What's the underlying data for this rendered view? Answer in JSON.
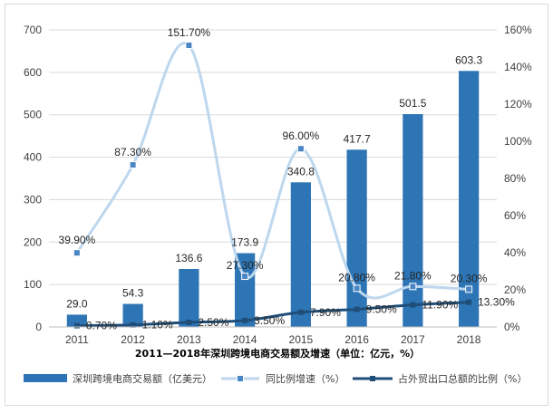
{
  "chart_data": {
    "type": "bar",
    "title": "2011—2018年深圳跨境电商交易额及增速（单位：亿元，%）",
    "categories": [
      "2011",
      "2012",
      "2013",
      "2014",
      "2015",
      "2016",
      "2017",
      "2018"
    ],
    "left_axis": {
      "min": 0,
      "max": 700,
      "ticks": [
        "0",
        "100",
        "200",
        "300",
        "400",
        "500",
        "600",
        "700"
      ]
    },
    "right_axis": {
      "min": 0,
      "max": 160,
      "ticks": [
        "0%",
        "20%",
        "40%",
        "60%",
        "80%",
        "100%",
        "120%",
        "140%",
        "160%"
      ]
    },
    "grid": true,
    "legend_position": "bottom",
    "series": [
      {
        "name": "深圳跨境电商交易额（亿美元）",
        "kind": "bar",
        "axis": "left",
        "color": "#2e75b6",
        "values": [
          29.0,
          54.3,
          136.6,
          173.9,
          340.8,
          417.7,
          501.5,
          603.3
        ],
        "labels": [
          "29.0",
          "54.3",
          "136.6",
          "173.9",
          "340.8",
          "417.7",
          "501.5",
          "603.3"
        ]
      },
      {
        "name": "同比例增速（%）",
        "kind": "line",
        "axis": "right",
        "color": "#bdd7ee",
        "marker_color": "#4a86c5",
        "values": [
          39.9,
          87.3,
          151.7,
          27.3,
          96.0,
          20.8,
          21.8,
          20.3
        ],
        "labels": [
          "39.90%",
          "87.30%",
          "151.70%",
          "27.30%",
          "96.00%",
          "20.80%",
          "21.80%",
          "20.30%"
        ]
      },
      {
        "name": "占外贸出口总额的比例（%）",
        "kind": "line",
        "axis": "right",
        "color": "#1f4e79",
        "values": [
          0.7,
          1.1,
          2.5,
          3.5,
          7.9,
          9.5,
          11.9,
          13.3
        ],
        "labels": [
          "0.70%",
          "1.10%",
          "2.50%",
          "3.50%",
          "7.90%",
          "9.50%",
          "11.90%",
          "13.30%"
        ]
      }
    ]
  }
}
